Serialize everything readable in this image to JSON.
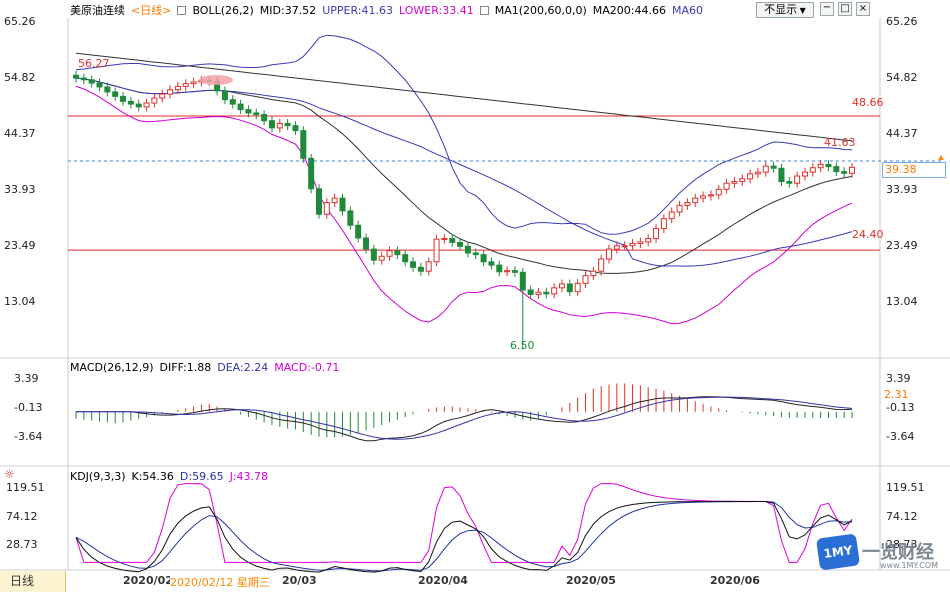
{
  "instrument": {
    "name": "美原油连续",
    "period_link": "<日线>"
  },
  "main_legend": {
    "boll": "BOLL(26,2)",
    "mid": "MID:37.52",
    "upper": "UPPER:41.63",
    "lower": "LOWER:33.41",
    "ma1": "MA1(200,60,0,0)",
    "ma200": "MA200:44.66",
    "ma60": "MA60"
  },
  "controls": {
    "hide_label": "不显示",
    "window_icons": [
      "minimize-icon",
      "restore-icon",
      "close-icon"
    ]
  },
  "price_axis": {
    "left_ticks": [
      "65.26",
      "54.82",
      "44.37",
      "33.93",
      "23.49",
      "13.04"
    ],
    "right_ticks": [
      "65.26",
      "54.82",
      "44.37",
      "33.93",
      "23.49",
      "13.04"
    ],
    "current_price": "39.38"
  },
  "annotations": {
    "high": "56.27",
    "low": "6.50",
    "upper_level": "41.63",
    "hline_top": "48.66",
    "hline_bottom": "24.40"
  },
  "macd": {
    "legend": {
      "name": "MACD(26,12,9)",
      "diff": "DIFF:1.88",
      "dea": "DEA:2.24",
      "macd": "MACD:-0.71"
    },
    "left_ticks": [
      "3.39",
      "-0.13",
      "-3.64"
    ],
    "right_ticks": [
      "3.39",
      "-0.13",
      "-3.64"
    ],
    "current": "2.31"
  },
  "kdj": {
    "legend": {
      "name": "KDJ(9,3,3)",
      "k": "K:54.36",
      "d": "D:59.65",
      "j": "J:43.78"
    },
    "left_ticks": [
      "119.51",
      "74.12",
      "28.73"
    ],
    "right_ticks": [
      "119.51",
      "74.12",
      "28.73"
    ]
  },
  "time_axis": {
    "period": "日线",
    "labels": [
      "2020/02",
      "2020/02/12 星期三",
      "20/03",
      "2020/04",
      "2020/05",
      "2020/06"
    ]
  },
  "watermark": {
    "logo_text": "1MY",
    "brand": "一览财经",
    "url": "www.1MY.COM"
  },
  "colors": {
    "up": "#e0302b",
    "down": "#1e8a3a",
    "boll_upper": "#3a3ab8",
    "boll_mid": "#333333",
    "boll_lower": "#d400d4",
    "ma200": "#333333",
    "hline": "#e8242a",
    "current": "#ff8800",
    "highlight": "#ff8800",
    "diff": "#222222",
    "dea": "#3333aa",
    "k": "#111111",
    "d": "#2233aa",
    "j": "#e000e0"
  },
  "chart_data": [
    {
      "type": "candlestick",
      "title": "美原油连续",
      "x": [
        "2020/02",
        "2020/02",
        "2020/02",
        "2020/02",
        "2020/02",
        "2020/02",
        "2020/02",
        "2020/02",
        "2020/02",
        "2020/02",
        "2020/02",
        "2020/02",
        "2020/02",
        "2020/02",
        "2020/02",
        "2020/02",
        "2020/02",
        "2020/02",
        "2020/02",
        "2020/02",
        "2020/03",
        "2020/03",
        "2020/03",
        "2020/03",
        "2020/03",
        "2020/03",
        "2020/03",
        "2020/03",
        "2020/03",
        "2020/03",
        "2020/03",
        "2020/03",
        "2020/03",
        "2020/03",
        "2020/03",
        "2020/03",
        "2020/03",
        "2020/03",
        "2020/03",
        "2020/03",
        "2020/04",
        "2020/04",
        "2020/04",
        "2020/04",
        "2020/04",
        "2020/04",
        "2020/04",
        "2020/04",
        "2020/04",
        "2020/04",
        "2020/04",
        "2020/04",
        "2020/04",
        "2020/04",
        "2020/04",
        "2020/04",
        "2020/04",
        "2020/04",
        "2020/04",
        "2020/04",
        "2020/05",
        "2020/05",
        "2020/05",
        "2020/05",
        "2020/05",
        "2020/05",
        "2020/05",
        "2020/05",
        "2020/05",
        "2020/05",
        "2020/05",
        "2020/05",
        "2020/05",
        "2020/05",
        "2020/05",
        "2020/05",
        "2020/05",
        "2020/05",
        "2020/05",
        "2020/05",
        "2020/06",
        "2020/06",
        "2020/06",
        "2020/06",
        "2020/06",
        "2020/06",
        "2020/06",
        "2020/06",
        "2020/06",
        "2020/06",
        "2020/06",
        "2020/06",
        "2020/06",
        "2020/06",
        "2020/06",
        "2020/06",
        "2020/06",
        "2020/06",
        "2020/06",
        "2020/06"
      ],
      "close": [
        55.5,
        55.2,
        54.6,
        53.9,
        53.0,
        52.2,
        51.3,
        50.8,
        50.3,
        51.0,
        51.9,
        52.6,
        53.4,
        54.0,
        54.5,
        54.8,
        55.1,
        54.9,
        53.2,
        51.6,
        50.8,
        49.8,
        49.2,
        48.9,
        47.8,
        46.5,
        47.3,
        46.9,
        46.0,
        41.0,
        35.5,
        30.9,
        33.0,
        33.8,
        31.5,
        28.9,
        26.6,
        24.6,
        22.6,
        23.3,
        24.3,
        23.6,
        22.3,
        21.3,
        20.6,
        22.3,
        26.4,
        26.5,
        25.8,
        25.1,
        23.9,
        23.6,
        22.3,
        21.7,
        20.5,
        20.7,
        20.4,
        17.2,
        16.4,
        16.8,
        16.5,
        17.6,
        18.3,
        16.9,
        18.4,
        19.8,
        20.6,
        22.8,
        24.6,
        25.2,
        25.2,
        25.6,
        25.9,
        26.5,
        28.3,
        30.1,
        31.3,
        32.5,
        33.0,
        33.8,
        34.2,
        34.4,
        35.4,
        36.5,
        36.8,
        37.3,
        38.2,
        38.5,
        39.6,
        39.2,
        36.8,
        36.5,
        37.8,
        38.5,
        39.3,
        39.9,
        39.5,
        38.6,
        38.3,
        39.38
      ],
      "hlines": [
        48.66,
        24.4
      ],
      "high_marker": 56.27,
      "low_marker": 6.5,
      "ylim": [
        6,
        66
      ]
    },
    {
      "type": "bar",
      "title": "MACD(26,12,9)",
      "series": [
        {
          "name": "MACD",
          "values": [
            -0.8,
            -0.9,
            -1.0,
            -1.1,
            -1.2,
            -1.3,
            -1.2,
            -1.0,
            -0.8,
            -0.6,
            -0.4,
            -0.2,
            0.0,
            0.2,
            0.4,
            0.6,
            0.8,
            0.9,
            0.6,
            0.3,
            0.0,
            -0.3,
            -0.6,
            -0.9,
            -1.2,
            -1.5,
            -1.7,
            -1.9,
            -2.0,
            -2.3,
            -2.6,
            -2.8,
            -2.9,
            -2.9,
            -2.8,
            -2.6,
            -2.4,
            -2.1,
            -1.8,
            -1.5,
            -1.2,
            -0.9,
            -0.6,
            -0.3,
            0.0,
            0.3,
            0.5,
            0.6,
            0.6,
            0.5,
            0.4,
            0.3,
            0.1,
            -0.1,
            -0.3,
            -0.5,
            -0.7,
            -0.9,
            -1.0,
            -0.8,
            -0.4,
            0.0,
            0.5,
            1.0,
            1.6,
            2.1,
            2.6,
            2.9,
            3.1,
            3.2,
            3.2,
            3.1,
            3.0,
            2.8,
            2.6,
            2.4,
            2.1,
            1.8,
            1.5,
            1.2,
            0.9,
            0.6,
            0.4,
            0.2,
            0.0,
            -0.1,
            -0.2,
            -0.3,
            -0.4,
            -0.5,
            -0.6,
            -0.7,
            -0.7,
            -0.7,
            -0.7,
            -0.7,
            -0.7,
            -0.7,
            -0.7,
            -0.71
          ]
        }
      ],
      "ylim": [
        -5,
        4.5
      ]
    },
    {
      "type": "line",
      "title": "KDJ(9,3,3)",
      "ylim": [
        10,
        130
      ]
    }
  ]
}
